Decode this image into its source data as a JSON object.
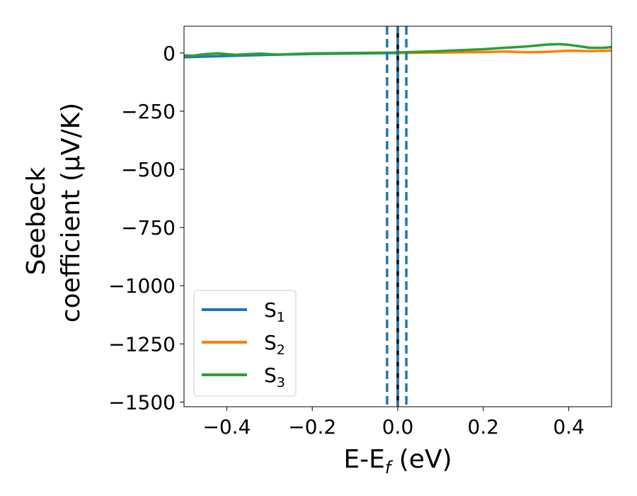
{
  "chart_data": {
    "type": "line",
    "xlabel_main": "E-E",
    "xlabel_sub": "f",
    "xlabel_unit": " (eV)",
    "ylabel_line1": "Seebeck",
    "ylabel_line2": "coefficient  (μV/K)",
    "xlim": [
      -0.5,
      0.5
    ],
    "ylim": [
      -1520,
      115
    ],
    "xticks": [
      -0.4,
      -0.2,
      0.0,
      0.2,
      0.4
    ],
    "xtick_labels": [
      "−0.4",
      "−0.2",
      "0.0",
      "0.2",
      "0.4"
    ],
    "yticks": [
      0,
      -250,
      -500,
      -750,
      -1000,
      -1250,
      -1500
    ],
    "ytick_labels": [
      "0",
      "−250",
      "−500",
      "−750",
      "−1000",
      "−1250",
      "−1500"
    ],
    "vlines": [
      {
        "x": -0.025,
        "style": "dashed",
        "color": "#1f77b4"
      },
      {
        "x": 0.02,
        "style": "dashed",
        "color": "#1f77b4"
      },
      {
        "x": 0.0,
        "style": "solid",
        "color": "#000000"
      },
      {
        "x": 0.0,
        "style": "dashed-overlay",
        "color": "#1f77b4"
      }
    ],
    "legend_position": "lower-left",
    "series": [
      {
        "name": "S",
        "sub": "1",
        "color": "#1f77b4",
        "x": [
          -0.5,
          -0.4,
          -0.3,
          -0.2,
          -0.1,
          0.0
        ],
        "y": [
          -18,
          -13,
          -8,
          -4,
          -2,
          0
        ]
      },
      {
        "name": "S",
        "sub": "2",
        "color": "#ff7f0e",
        "x": [
          0.0,
          0.1,
          0.2,
          0.25,
          0.3,
          0.35,
          0.4,
          0.45,
          0.5
        ],
        "y": [
          0,
          2,
          4,
          6,
          3,
          5,
          10,
          8,
          10
        ]
      },
      {
        "name": "S",
        "sub": "3",
        "color": "#2ca02c",
        "x": [
          -0.5,
          -0.48,
          -0.45,
          -0.42,
          -0.38,
          -0.34,
          -0.32,
          -0.28,
          -0.24,
          -0.2,
          -0.1,
          0.0,
          0.1,
          0.2,
          0.25,
          0.3,
          0.35,
          0.38,
          0.4,
          0.42,
          0.45,
          0.48,
          0.5
        ],
        "y": [
          -10,
          -12,
          -5,
          -2,
          -8,
          -4,
          -3,
          -7,
          -4,
          -2,
          0,
          2,
          8,
          16,
          22,
          28,
          36,
          38,
          35,
          30,
          22,
          22,
          25
        ]
      }
    ]
  }
}
